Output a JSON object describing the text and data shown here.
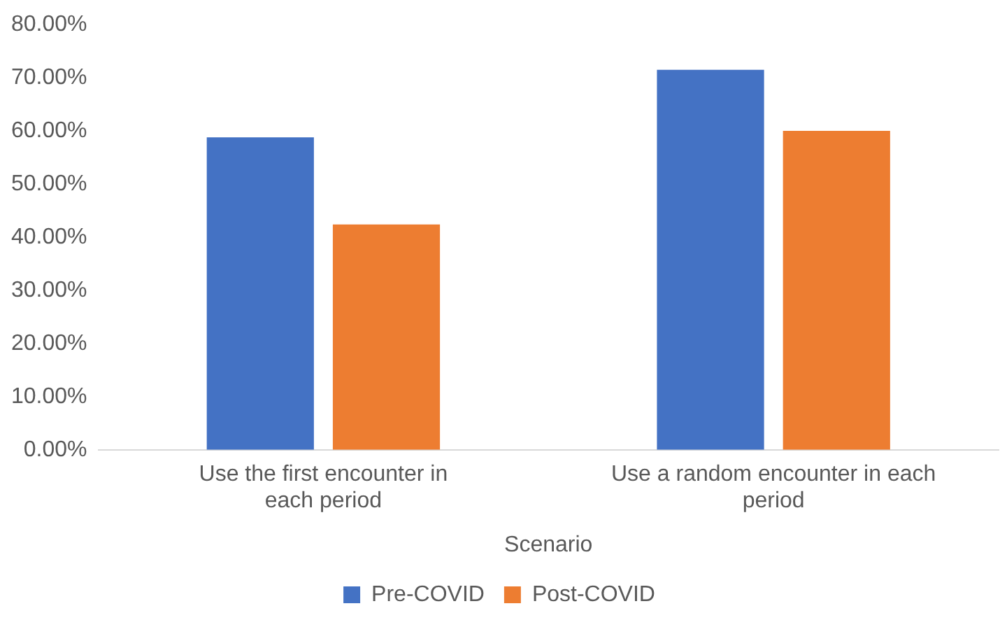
{
  "chart_data": {
    "type": "bar",
    "xlabel": "Scenario",
    "categories": [
      "Use the first encounter in each period",
      "Use a random encounter in each period"
    ],
    "series": [
      {
        "name": "Pre-COVID",
        "color": "#4472c4",
        "values": [
          58.8,
          71.5
        ]
      },
      {
        "name": "Post-COVID",
        "color": "#ed7d31",
        "values": [
          42.4,
          60.0
        ]
      }
    ],
    "ylim": [
      0,
      80
    ],
    "yticks": [
      {
        "value": 0,
        "label": "0.00%"
      },
      {
        "value": 10,
        "label": "10.00%"
      },
      {
        "value": 20,
        "label": "20.00%"
      },
      {
        "value": 30,
        "label": "30.00%"
      },
      {
        "value": 40,
        "label": "40.00%"
      },
      {
        "value": 50,
        "label": "50.00%"
      },
      {
        "value": 60,
        "label": "60.00%"
      },
      {
        "value": 70,
        "label": "70.00%"
      },
      {
        "value": 80,
        "label": "80.00%"
      }
    ],
    "grid": false,
    "legend": "bottom"
  }
}
